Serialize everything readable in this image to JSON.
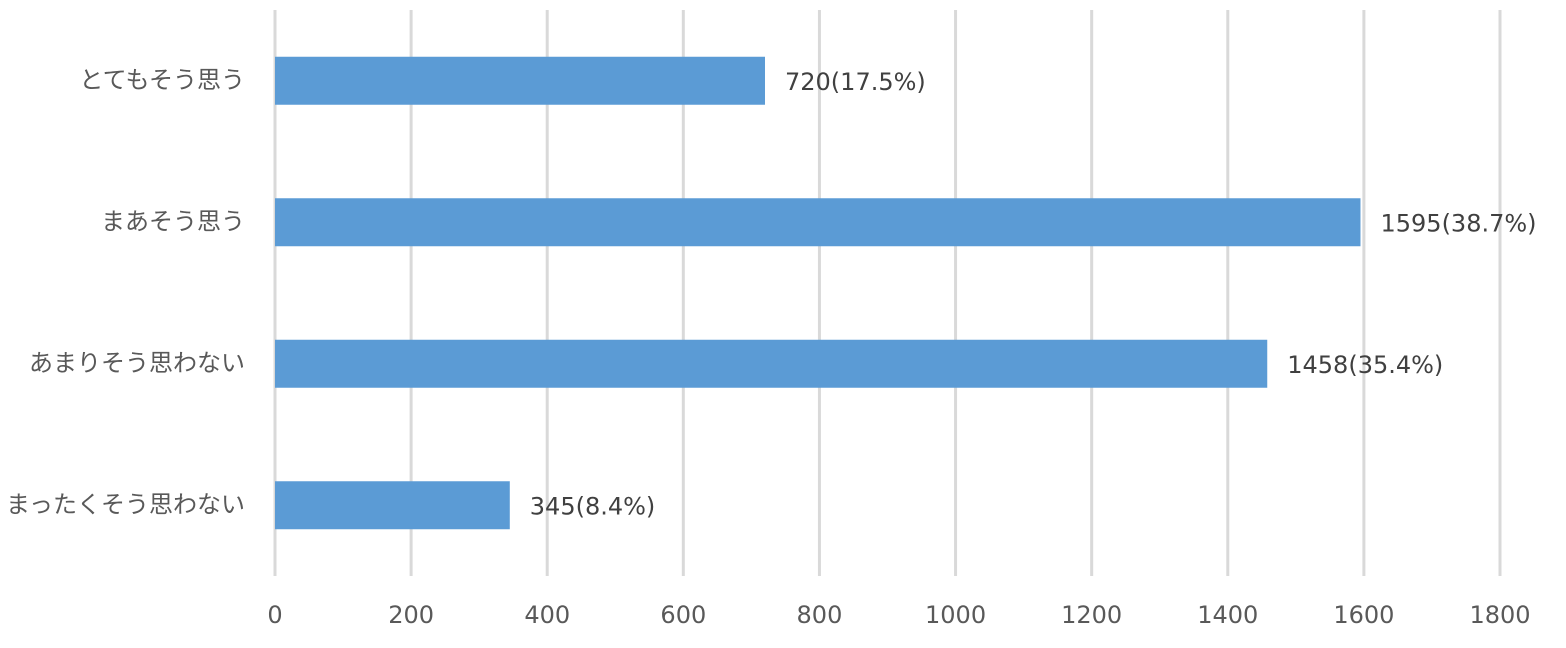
{
  "chart_data": {
    "type": "barh",
    "categories": [
      "とてもそう思う",
      "まあそう思う",
      "あまりそう思わない",
      "まったくそう思わない"
    ],
    "values": [
      720,
      1595,
      1458,
      345
    ],
    "value_labels": [
      "720(17.5%)",
      "1595(38.7%)",
      "1458(35.4%)",
      "345(8.4%)"
    ],
    "color": "#5b9bd5",
    "xlim": [
      0,
      1800
    ],
    "xticks": [
      0,
      200,
      400,
      600,
      800,
      1000,
      1200,
      1400,
      1600,
      1800
    ],
    "grid": true
  }
}
